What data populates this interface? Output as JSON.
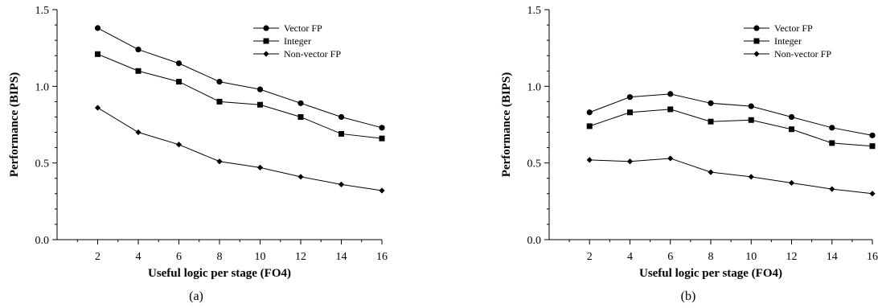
{
  "chart_data": [
    {
      "type": "line",
      "caption": "(a)",
      "xlabel": "Useful logic per stage (FO4)",
      "ylabel": "Performance (BIPS)",
      "xlim": [
        0,
        16
      ],
      "ylim": [
        0,
        1.5
      ],
      "xticks": [
        2,
        4,
        6,
        8,
        10,
        12,
        14,
        16
      ],
      "yticks": [
        0.0,
        0.5,
        1.0,
        1.5
      ],
      "ytick_labels": [
        "0.0",
        "0.5",
        "1.0",
        "1.5"
      ],
      "legend_position": "top-right",
      "x": [
        2,
        4,
        6,
        8,
        10,
        12,
        14,
        16
      ],
      "series": [
        {
          "name": "Vector FP",
          "marker": "circle",
          "values": [
            1.38,
            1.24,
            1.15,
            1.03,
            0.98,
            0.89,
            0.8,
            0.73
          ]
        },
        {
          "name": "Integer",
          "marker": "square",
          "values": [
            1.21,
            1.1,
            1.03,
            0.9,
            0.88,
            0.8,
            0.69,
            0.66
          ]
        },
        {
          "name": "Non-vector FP",
          "marker": "diamond",
          "values": [
            0.86,
            0.7,
            0.62,
            0.51,
            0.47,
            0.41,
            0.36,
            0.32
          ]
        }
      ]
    },
    {
      "type": "line",
      "caption": "(b)",
      "xlabel": "Useful logic per stage (FO4)",
      "ylabel": "Performance (BIPS)",
      "xlim": [
        0,
        16
      ],
      "ylim": [
        0,
        1.5
      ],
      "xticks": [
        2,
        4,
        6,
        8,
        10,
        12,
        14,
        16
      ],
      "yticks": [
        0.0,
        0.5,
        1.0,
        1.5
      ],
      "ytick_labels": [
        "0.0",
        "0.5",
        "1.0",
        "1.5"
      ],
      "legend_position": "top-right",
      "x": [
        2,
        4,
        6,
        8,
        10,
        12,
        14,
        16
      ],
      "series": [
        {
          "name": "Vector FP",
          "marker": "circle",
          "values": [
            0.83,
            0.93,
            0.95,
            0.89,
            0.87,
            0.8,
            0.73,
            0.68
          ]
        },
        {
          "name": "Integer",
          "marker": "square",
          "values": [
            0.74,
            0.83,
            0.85,
            0.77,
            0.78,
            0.72,
            0.63,
            0.61
          ]
        },
        {
          "name": "Non-vector FP",
          "marker": "diamond",
          "values": [
            0.52,
            0.51,
            0.53,
            0.44,
            0.41,
            0.37,
            0.33,
            0.3
          ]
        }
      ]
    }
  ]
}
